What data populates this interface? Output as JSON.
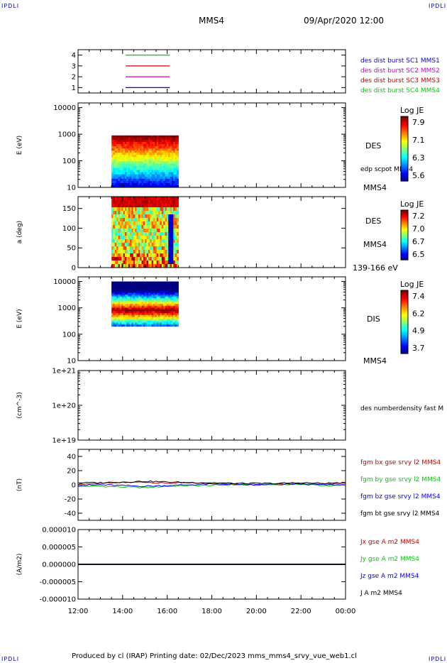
{
  "corners": {
    "tl": "IPDLI",
    "tr": "IPDLI",
    "bl": "IPDLI",
    "br": "IPDLI"
  },
  "header": {
    "spacecraft": "MMS4",
    "datetime": "09/Apr/2020 12:00"
  },
  "footer": "Produced by cl (IRAP)   Printing date: 02/Dec/2023   mms_mms4_srvy_vue_web1.cl",
  "time_axis": {
    "ticks": [
      "12:00",
      "14:00",
      "16:00",
      "18:00",
      "20:00",
      "22:00",
      "00:00"
    ],
    "start_hour": 12,
    "end_hour": 24
  },
  "colors": {
    "c1": "#0000ff",
    "c2": "#cc00cc",
    "c3": "#cc0000",
    "c4": "#00cc00",
    "black": "#000000"
  },
  "chart_data": [
    {
      "type": "line",
      "id": "availability",
      "ylim": [
        0.5,
        4.5
      ],
      "yticks": [
        "1",
        "2",
        "3",
        "4"
      ],
      "x_start": "13:30",
      "x_end": "16:30",
      "series": [
        {
          "name": "des dist burst SC1 MMS1",
          "level": 1
        },
        {
          "name": "des dist burst SC2 MMS2",
          "level": 2
        },
        {
          "name": "des dist burst SC3 MMS3",
          "level": 3
        },
        {
          "name": "des dist burst SC4 MMS4",
          "level": 4
        }
      ]
    },
    {
      "type": "heatmap",
      "id": "des-energy",
      "ylabel": "E (eV)",
      "yscale": "log",
      "ylim": [
        10,
        15000
      ],
      "yticks": [
        "10",
        "100",
        "1000",
        "10000"
      ],
      "x_start": "13:30",
      "x_end": "16:30",
      "e_min": 10,
      "e_max": 900,
      "side_label": "DES",
      "extra_label": "edp scpot MMS4",
      "sc_label": "MMS4",
      "colorbar": {
        "title": "Log JE",
        "ticks": [
          "7.9",
          "7.1",
          "6.3",
          "5.6"
        ]
      }
    },
    {
      "type": "heatmap",
      "id": "des-pitch",
      "ylabel": "a (deg)",
      "ylim": [
        0,
        180
      ],
      "yticks": [
        "0",
        "50",
        "100",
        "150"
      ],
      "x_start": "13:30",
      "x_end": "16:30",
      "side_label": "DES",
      "sc_label": "MMS4",
      "energy_band": "139-166 eV",
      "colorbar": {
        "title": "Log JE",
        "ticks": [
          "7.2",
          "7.0",
          "6.7",
          "6.5"
        ]
      }
    },
    {
      "type": "heatmap",
      "id": "dis-energy",
      "ylabel": "E (eV)",
      "yscale": "log",
      "ylim": [
        10,
        15000
      ],
      "yticks": [
        "10",
        "100",
        "1000",
        "10000"
      ],
      "x_start": "13:30",
      "x_end": "16:30",
      "e_min": 200,
      "e_max": 10000,
      "e_peak": 800,
      "side_label": "DIS",
      "sc_label": "MMS4",
      "colorbar": {
        "title": "Log JE",
        "ticks": [
          "7.4",
          "6.2",
          "4.9",
          "3.7"
        ]
      }
    },
    {
      "type": "line",
      "id": "density",
      "ylabel": "(cm^-3)",
      "yscale": "log",
      "ylim": [
        1e+19,
        1e+21
      ],
      "yticks": [
        "1e+19",
        "1e+20",
        "1e+21"
      ],
      "series": [
        {
          "name": "des numberdensity fast M",
          "values": []
        }
      ]
    },
    {
      "type": "line",
      "id": "magnetic-field",
      "ylabel": "(nT)",
      "ylim": [
        -50,
        50
      ],
      "yticks": [
        "-40",
        "-20",
        "0",
        "20",
        "40"
      ],
      "x": [
        12,
        13,
        14,
        15,
        16,
        17,
        18,
        19,
        20,
        21,
        22,
        23,
        24
      ],
      "series": [
        {
          "name": "fgm bx gse srvy l2 MMS4",
          "values": [
            1,
            2,
            3,
            4,
            2,
            3,
            2,
            1,
            0,
            1,
            2,
            1,
            2
          ]
        },
        {
          "name": "fgm by gse srvy l2 MMS4",
          "values": [
            -2,
            -2,
            -3,
            -4,
            -2,
            -1,
            -1,
            0,
            1,
            0,
            1,
            -1,
            -1
          ]
        },
        {
          "name": "fgm bz gse srvy l2 MMS4",
          "values": [
            -1,
            0,
            -1,
            -2,
            -1,
            0,
            1,
            1,
            0,
            1,
            1,
            0,
            0
          ]
        },
        {
          "name": "fgm bt gse srvy l2 MMS4",
          "values": [
            3,
            3,
            4,
            5,
            4,
            3,
            3,
            2,
            2,
            2,
            3,
            2,
            3
          ]
        }
      ]
    },
    {
      "type": "line",
      "id": "current-density",
      "ylabel": "(A/m2)",
      "ylim": [
        -1e-05,
        1e-05
      ],
      "yticks": [
        "-0.000010",
        "-0.000005",
        "0.000000",
        "0.000005",
        "0.000010"
      ],
      "x": [
        12,
        24
      ],
      "series": [
        {
          "name": "Jx gse A m2 MMS4",
          "values": [
            0,
            0
          ]
        },
        {
          "name": "Jy gse A m2 MMS4",
          "values": [
            0,
            0
          ]
        },
        {
          "name": "Jz gse A m2 MMS4",
          "values": [
            0,
            0
          ]
        },
        {
          "name": "J A m2 MMS4",
          "values": [
            0,
            0
          ]
        }
      ]
    }
  ]
}
